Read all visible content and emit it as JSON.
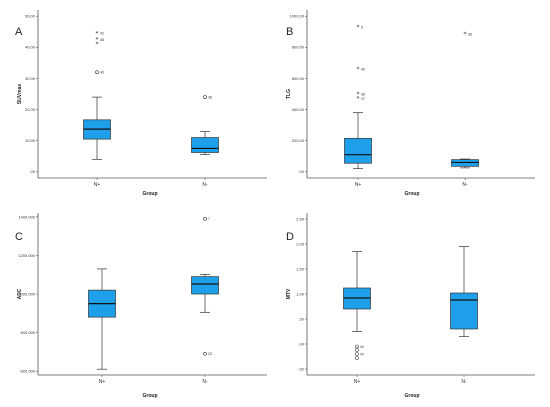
{
  "chart_data": [
    {
      "type": "box",
      "panel": "A",
      "xlabel": "Group",
      "ylabel": "SUVmax",
      "categories": [
        "N+",
        "N-"
      ],
      "ylim": [
        -2,
        52
      ],
      "yticks": [
        0,
        10,
        20,
        30,
        40,
        50
      ],
      "ytick_labels": [
        ".00",
        "10.00",
        "20.00",
        "30.00",
        "40.00",
        "50.00"
      ],
      "boxes": [
        {
          "min": 4,
          "q1": 10.5,
          "median": 13.7,
          "q3": 16.7,
          "max": 24,
          "outliers": [
            {
              "value": 44.5,
              "label": "42",
              "marker": "star"
            },
            {
              "value": 42.5,
              "label": "38",
              "marker": "star"
            },
            {
              "value": 41,
              "label": "",
              "marker": "star"
            },
            {
              "value": 32,
              "label": "43",
              "marker": "circle"
            }
          ]
        },
        {
          "min": 5.5,
          "q1": 6.2,
          "median": 7.5,
          "q3": 11,
          "max": 13,
          "outliers": [
            {
              "value": 24,
              "label": "36",
              "marker": "circle"
            }
          ]
        }
      ]
    },
    {
      "type": "box",
      "panel": "B",
      "xlabel": "Group",
      "ylabel": "TLG",
      "categories": [
        "N+",
        "N-"
      ],
      "ylim": [
        -40,
        1040
      ],
      "yticks": [
        0,
        200,
        400,
        600,
        800,
        1000
      ],
      "ytick_labels": [
        ".00",
        "200.00",
        "400.00",
        "600.00",
        "800.00",
        "1000.00"
      ],
      "boxes": [
        {
          "min": 20,
          "q1": 55,
          "median": 110,
          "q3": 215,
          "max": 380,
          "outliers": [
            {
              "value": 930,
              "label": "5",
              "marker": "star"
            },
            {
              "value": 660,
              "label": "40",
              "marker": "star"
            },
            {
              "value": 500,
              "label": "38",
              "marker": "star"
            },
            {
              "value": 470,
              "label": "37",
              "marker": "star"
            }
          ]
        },
        {
          "min": 25,
          "q1": 35,
          "median": 60,
          "q3": 78,
          "max": 82,
          "outliers": [
            {
              "value": 885,
              "label": "36",
              "marker": "star"
            }
          ]
        }
      ]
    },
    {
      "type": "box",
      "panel": "C",
      "xlabel": "Group",
      "ylabel": "ADC",
      "categories": [
        "N+",
        "N-"
      ],
      "ylim": [
        580,
        1420
      ],
      "yticks": [
        600,
        800,
        1000,
        1200,
        1400
      ],
      "ytick_labels": [
        "600.000",
        "800.000",
        "1000.000",
        "1200.000",
        "1400.000"
      ],
      "boxes": [
        {
          "min": 610,
          "q1": 880,
          "median": 950,
          "q3": 1020,
          "max": 1130,
          "outliers": []
        },
        {
          "min": 905,
          "q1": 1000,
          "median": 1052,
          "q3": 1090,
          "max": 1102,
          "outliers": [
            {
              "value": 1390,
              "label": "7",
              "marker": "circle"
            },
            {
              "value": 690,
              "label": "23",
              "marker": "circle"
            }
          ]
        }
      ]
    },
    {
      "type": "box",
      "panel": "D",
      "xlabel": "Group",
      "ylabel": "MTV",
      "categories": [
        "N+",
        "N-"
      ],
      "ylim": [
        -0.62,
        2.62
      ],
      "yticks": [
        -0.5,
        0,
        0.5,
        1,
        1.5,
        2,
        2.5
      ],
      "ytick_labels": [
        "-.50",
        ".00",
        ".50",
        "1.00",
        "1.50",
        "2.00",
        "2.50"
      ],
      "boxes": [
        {
          "min": 0.25,
          "q1": 0.7,
          "median": 0.92,
          "q3": 1.12,
          "max": 1.85,
          "outliers": [
            {
              "value": -0.05,
              "label": "40",
              "marker": "circle"
            },
            {
              "value": -0.12,
              "label": "",
              "marker": "circle"
            },
            {
              "value": -0.2,
              "label": "42",
              "marker": "circle"
            },
            {
              "value": -0.28,
              "label": "",
              "marker": "circle"
            }
          ]
        },
        {
          "min": 0.15,
          "q1": 0.3,
          "median": 0.88,
          "q3": 1.02,
          "max": 1.95,
          "outliers": []
        }
      ]
    }
  ]
}
